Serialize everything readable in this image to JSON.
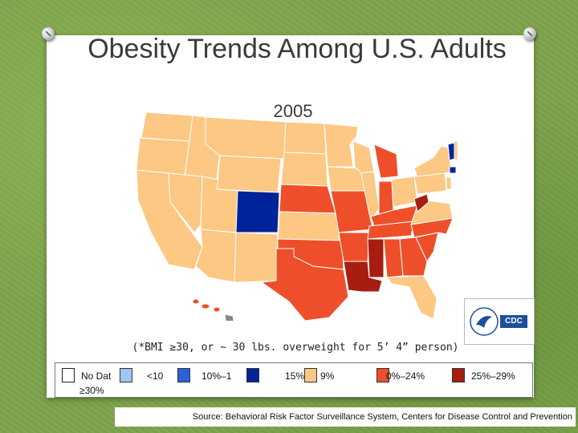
{
  "slide": {
    "title": "Obesity Trends Among U.S. Adults",
    "subtitle": "2005",
    "note": "(*BMI ≥30, or ~ 30 lbs. overweight for 5’ 4” person)",
    "source": "Source: Behavioral Risk Factor Surveillance System, Centers for Disease Control and Prevention",
    "logo_text": "CDC"
  },
  "legend": {
    "items": [
      {
        "label": "No Dat",
        "color": "#ffffff"
      },
      {
        "label": "<10",
        "color": "#9ec6f0"
      },
      {
        "label": "10%–1",
        "color": "#2a62d6"
      },
      {
        "label": "15%",
        "color": "#00239a"
      },
      {
        "label": "9%",
        "color": "#fcc884"
      },
      {
        "label": "0%–24%",
        "color": "#ee4f2a"
      },
      {
        "label": "25%–29%",
        "color": "#a81d12"
      },
      {
        "label": "≥30%",
        "color": ""
      }
    ]
  },
  "colors": {
    "c20_24": "#fcc884",
    "c25_29": "#ee4f2a",
    "c30": "#a81d12",
    "c15_19": "#00239a",
    "no_data": "#888888"
  }
}
